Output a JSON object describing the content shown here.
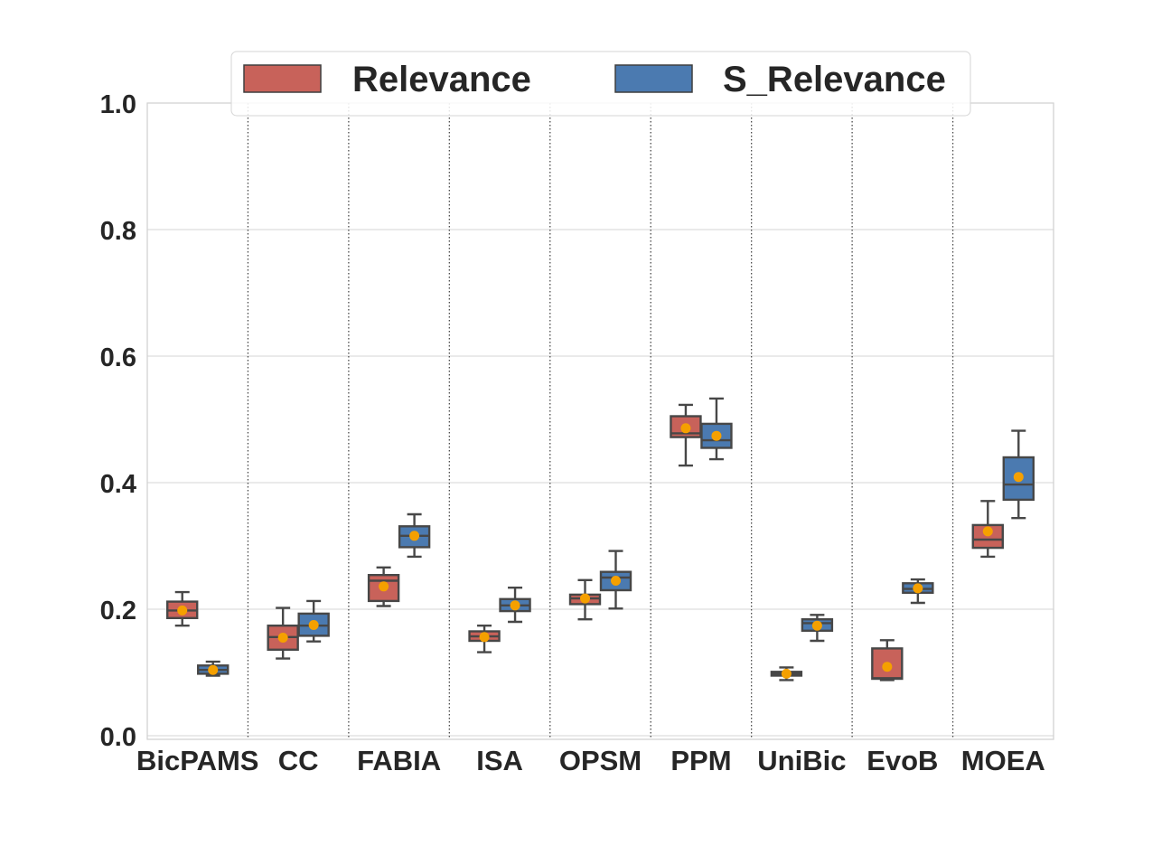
{
  "chart_data": {
    "type": "box",
    "categories": [
      "BicPAMS",
      "CC",
      "FABIA",
      "ISA",
      "OPSM",
      "PPM",
      "UniBic",
      "EvoB",
      "MOEA"
    ],
    "series": [
      {
        "name": "Relevance",
        "color": "#c8625a",
        "boxes": [
          {
            "min": 0.174,
            "q1": 0.186,
            "median": 0.198,
            "q3": 0.212,
            "max": 0.227,
            "mean": 0.198
          },
          {
            "min": 0.122,
            "q1": 0.136,
            "median": 0.156,
            "q3": 0.174,
            "max": 0.202,
            "mean": 0.155
          },
          {
            "min": 0.205,
            "q1": 0.213,
            "median": 0.245,
            "q3": 0.254,
            "max": 0.266,
            "mean": 0.236
          },
          {
            "min": 0.132,
            "q1": 0.15,
            "median": 0.157,
            "q3": 0.165,
            "max": 0.174,
            "mean": 0.156
          },
          {
            "min": 0.184,
            "q1": 0.208,
            "median": 0.217,
            "q3": 0.223,
            "max": 0.246,
            "mean": 0.217
          },
          {
            "min": 0.427,
            "q1": 0.472,
            "median": 0.478,
            "q3": 0.505,
            "max": 0.523,
            "mean": 0.486
          },
          {
            "min": 0.088,
            "q1": 0.095,
            "median": 0.098,
            "q3": 0.101,
            "max": 0.108,
            "mean": 0.098
          },
          {
            "min": 0.088,
            "q1": 0.09,
            "median": 0.091,
            "q3": 0.138,
            "max": 0.151,
            "mean": 0.109
          },
          {
            "min": 0.283,
            "q1": 0.297,
            "median": 0.31,
            "q3": 0.333,
            "max": 0.371,
            "mean": 0.323
          }
        ]
      },
      {
        "name": "S_Relevance",
        "color": "#4b7ab0",
        "boxes": [
          {
            "min": 0.095,
            "q1": 0.098,
            "median": 0.104,
            "q3": 0.111,
            "max": 0.117,
            "mean": 0.104
          },
          {
            "min": 0.149,
            "q1": 0.158,
            "median": 0.174,
            "q3": 0.193,
            "max": 0.213,
            "mean": 0.175
          },
          {
            "min": 0.283,
            "q1": 0.298,
            "median": 0.316,
            "q3": 0.331,
            "max": 0.35,
            "mean": 0.316
          },
          {
            "min": 0.18,
            "q1": 0.197,
            "median": 0.206,
            "q3": 0.216,
            "max": 0.234,
            "mean": 0.206
          },
          {
            "min": 0.201,
            "q1": 0.23,
            "median": 0.25,
            "q3": 0.259,
            "max": 0.292,
            "mean": 0.245
          },
          {
            "min": 0.437,
            "q1": 0.455,
            "median": 0.467,
            "q3": 0.493,
            "max": 0.533,
            "mean": 0.474
          },
          {
            "min": 0.15,
            "q1": 0.166,
            "median": 0.178,
            "q3": 0.184,
            "max": 0.191,
            "mean": 0.174
          },
          {
            "min": 0.21,
            "q1": 0.226,
            "median": 0.232,
            "q3": 0.241,
            "max": 0.247,
            "mean": 0.233
          },
          {
            "min": 0.344,
            "q1": 0.373,
            "median": 0.397,
            "q3": 0.44,
            "max": 0.482,
            "mean": 0.409
          }
        ]
      }
    ],
    "mean_marker_color": "#f5a000",
    "ylim": [
      0.0,
      1.0
    ],
    "yticks": [
      "0.0",
      "0.2",
      "0.4",
      "0.6",
      "0.8",
      "1.0"
    ],
    "xlabel": "",
    "ylabel": "",
    "grid": true,
    "legend_position": "top-center"
  }
}
